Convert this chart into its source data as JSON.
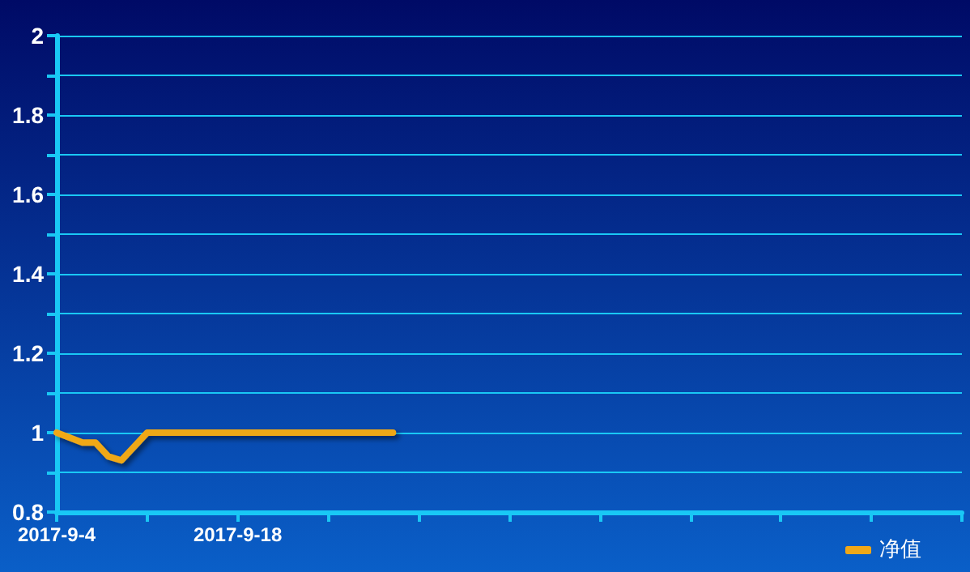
{
  "chart_data": {
    "type": "line",
    "x": [
      "2017-09-04",
      "2017-09-06",
      "2017-09-07",
      "2017-09-08",
      "2017-09-09",
      "2017-09-11",
      "2017-09-30"
    ],
    "series": [
      {
        "name": "净值",
        "color": "#f0a818",
        "values": [
          1,
          0.975,
          0.975,
          0.94,
          0.93,
          1,
          1
        ]
      }
    ],
    "xlim": [
      "2017-09-04",
      "2017-11-13"
    ],
    "xticks": [
      {
        "value": "2017-09-04",
        "label": "2017-9-4"
      },
      {
        "value": "2017-09-11",
        "label": null
      },
      {
        "value": "2017-09-18",
        "label": "2017-9-18"
      },
      {
        "value": "2017-09-25",
        "label": null
      },
      {
        "value": "2017-10-02",
        "label": null
      },
      {
        "value": "2017-10-09",
        "label": null
      },
      {
        "value": "2017-10-16",
        "label": null
      },
      {
        "value": "2017-10-23",
        "label": null
      },
      {
        "value": "2017-10-30",
        "label": null
      },
      {
        "value": "2017-11-06",
        "label": null
      },
      {
        "value": "2017-11-13",
        "label": null
      }
    ],
    "ylim": [
      0.8,
      2
    ],
    "yticks": [
      0.8,
      {
        "value": 0.9,
        "label": null
      },
      1,
      {
        "value": 1.1,
        "label": null
      },
      1.2,
      {
        "value": 1.3,
        "label": null
      },
      1.4,
      {
        "value": 1.5,
        "label": null
      },
      1.6,
      {
        "value": 1.7,
        "label": null
      },
      1.8,
      {
        "value": 1.9,
        "label": null
      },
      2
    ],
    "grid": "y",
    "legend": "bottom right",
    "marker": "none",
    "line_style": "solid"
  }
}
